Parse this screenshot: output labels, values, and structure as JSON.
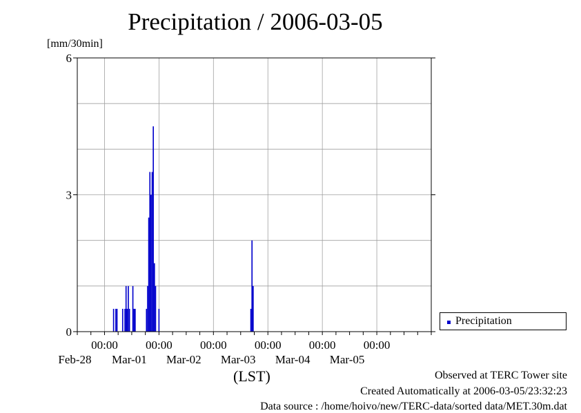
{
  "chart_data": {
    "type": "bar",
    "title": "Precipitation / 2006-03-05",
    "ylabel": "[mm/30min]",
    "xlabel": "(LST)",
    "ylim": [
      0,
      6
    ],
    "y_ticks": [
      0,
      3,
      6
    ],
    "xlim": [
      "2006-02-27T12:00",
      "2006-03-06T00:00"
    ],
    "x_ticks": [
      {
        "time": "2006-02-28T00:00",
        "label_time": "00:00",
        "label_date": "Feb-28"
      },
      {
        "time": "2006-03-01T00:00",
        "label_time": "00:00",
        "label_date": "Mar-01"
      },
      {
        "time": "2006-03-02T00:00",
        "label_time": "00:00",
        "label_date": "Mar-02"
      },
      {
        "time": "2006-03-03T00:00",
        "label_time": "00:00",
        "label_date": "Mar-03"
      },
      {
        "time": "2006-03-04T00:00",
        "label_time": "00:00",
        "label_date": "Mar-04"
      },
      {
        "time": "2006-03-05T00:00",
        "label_time": "00:00",
        "label_date": "Mar-05"
      }
    ],
    "grid": true,
    "legend_position": "right",
    "series": [
      {
        "name": "Precipitation",
        "color": "#0000cc",
        "points": [
          {
            "t": "2006-02-28T04:00",
            "v": 0.5
          },
          {
            "t": "2006-02-28T05:00",
            "v": 0.5
          },
          {
            "t": "2006-02-28T05:30",
            "v": 0.5
          },
          {
            "t": "2006-02-28T08:00",
            "v": 0.5
          },
          {
            "t": "2006-02-28T09:00",
            "v": 0.5
          },
          {
            "t": "2006-02-28T09:30",
            "v": 1.0
          },
          {
            "t": "2006-02-28T10:00",
            "v": 0.5
          },
          {
            "t": "2006-02-28T10:30",
            "v": 1.0
          },
          {
            "t": "2006-02-28T11:00",
            "v": 0.5
          },
          {
            "t": "2006-02-28T12:30",
            "v": 1.0
          },
          {
            "t": "2006-02-28T13:00",
            "v": 0.5
          },
          {
            "t": "2006-02-28T13:30",
            "v": 0.5
          },
          {
            "t": "2006-02-28T18:30",
            "v": 0.5
          },
          {
            "t": "2006-02-28T19:00",
            "v": 1.0
          },
          {
            "t": "2006-02-28T19:30",
            "v": 2.5
          },
          {
            "t": "2006-02-28T20:00",
            "v": 3.5
          },
          {
            "t": "2006-02-28T20:30",
            "v": 3.0
          },
          {
            "t": "2006-02-28T21:00",
            "v": 3.5
          },
          {
            "t": "2006-02-28T21:30",
            "v": 4.5
          },
          {
            "t": "2006-02-28T22:00",
            "v": 1.5
          },
          {
            "t": "2006-02-28T22:30",
            "v": 1.0
          },
          {
            "t": "2006-03-01T00:00",
            "v": 0.5
          },
          {
            "t": "2006-03-02T16:30",
            "v": 0.5
          },
          {
            "t": "2006-03-02T17:00",
            "v": 2.0
          },
          {
            "t": "2006-03-02T17:30",
            "v": 1.0
          }
        ]
      }
    ]
  },
  "footer": {
    "line1": "Observed at TERC Tower site",
    "line2": "Created Automatically at 2006-03-05/23:32:23",
    "line3": "Data source : /home/hoivo/new/TERC-data/sorted  data/MET.30m.dat"
  }
}
